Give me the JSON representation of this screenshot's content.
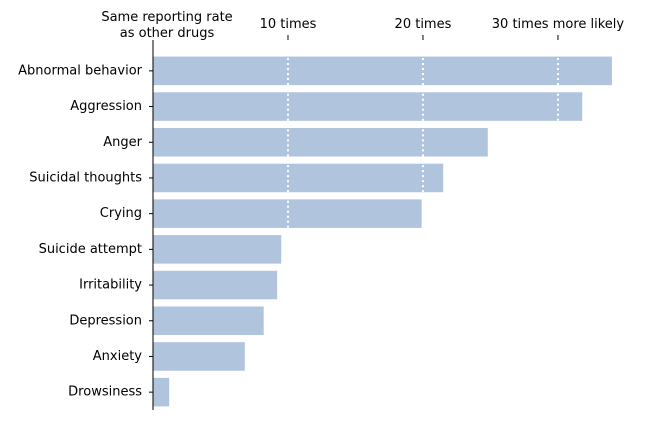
{
  "chart_data": {
    "type": "bar",
    "orientation": "horizontal",
    "categories": [
      "Abnormal behavior",
      "Aggression",
      "Anger",
      "Suicidal thoughts",
      "Crying",
      "Suicide attempt",
      "Irritability",
      "Depression",
      "Anxiety",
      "Drowsiness"
    ],
    "values": [
      34.0,
      31.8,
      24.8,
      21.5,
      19.9,
      9.5,
      9.2,
      8.2,
      6.8,
      1.2
    ],
    "xlim": [
      0,
      36.3
    ],
    "xticks": [
      {
        "value": 0,
        "label": "Same reporting rate\nas other drugs"
      },
      {
        "value": 10,
        "label": "10 times"
      },
      {
        "value": 20,
        "label": "20 times"
      },
      {
        "value": 30,
        "label": "30 times more likely"
      }
    ],
    "xaxis_position": "top",
    "reference_lines": [
      10,
      20,
      30
    ],
    "grid": false,
    "legend": "none",
    "title": "",
    "xlabel": "",
    "ylabel": "",
    "colors": {
      "bar": "#b0c4de",
      "reference_line": "#ffffff",
      "axis": "#000000",
      "text": "#000000"
    }
  }
}
